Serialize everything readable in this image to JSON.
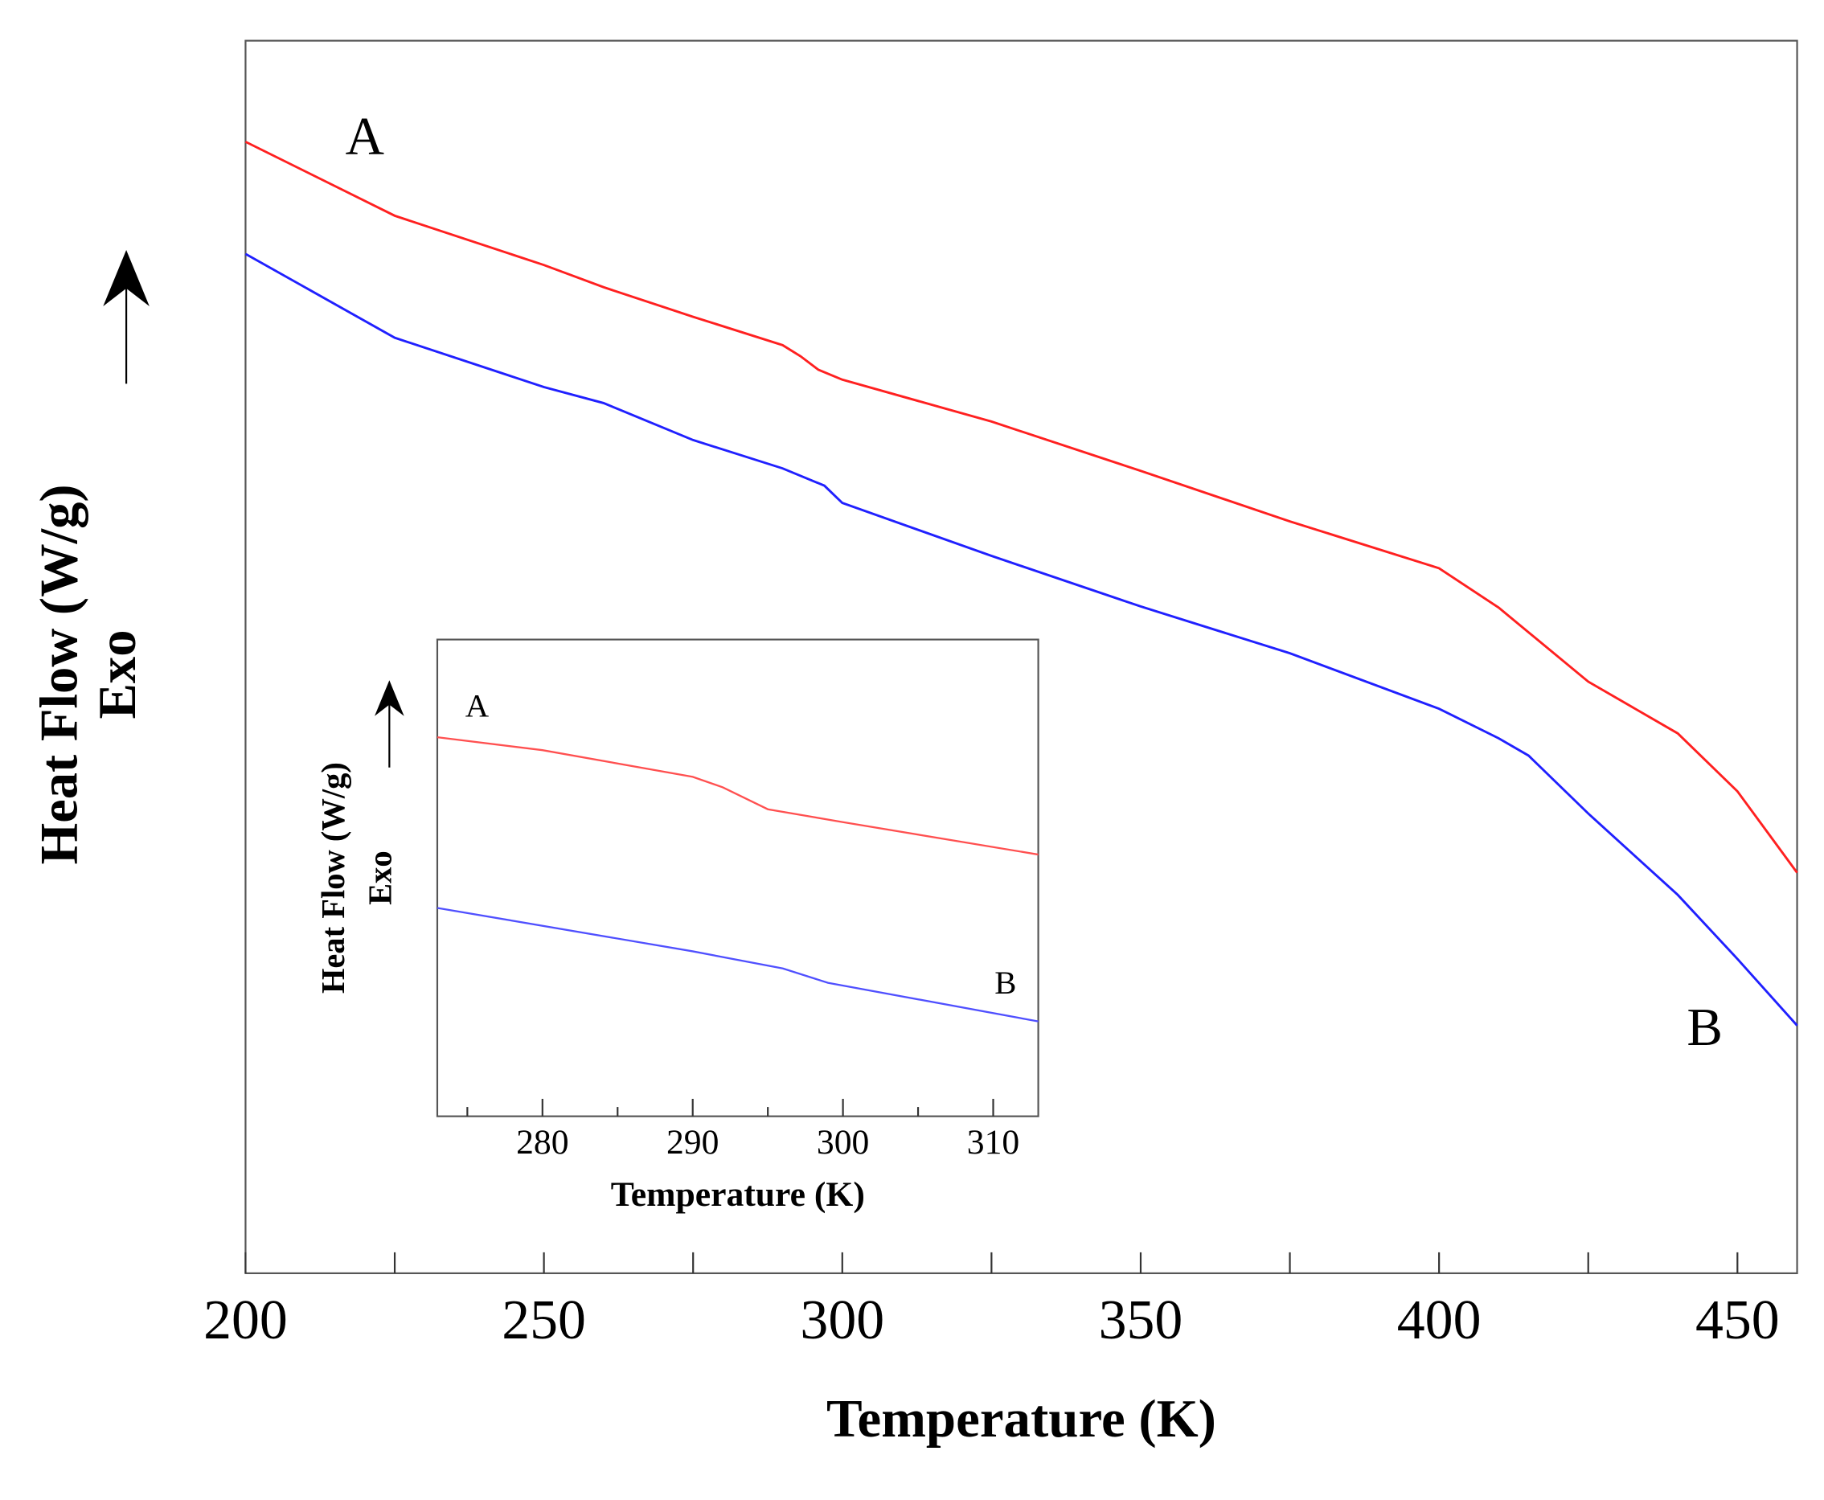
{
  "chart_data": [
    {
      "type": "line",
      "xlabel": "Temperature (K)",
      "ylabel": [
        "Heat Flow (W/g)",
        "Exo"
      ],
      "annotations": [
        "A",
        "B"
      ],
      "xlim": [
        200,
        460
      ],
      "xticks": [
        200,
        250,
        300,
        350,
        400,
        450
      ],
      "xticks_minor": [
        225,
        275,
        325,
        375,
        425
      ],
      "ylim": [
        0,
        100
      ],
      "series": [
        {
          "name": "A",
          "color": "#ff2020",
          "x": [
            200,
            225,
            250,
            260,
            275,
            290,
            293,
            296,
            300,
            325,
            350,
            375,
            400,
            410,
            425,
            440,
            450,
            455,
            460
          ],
          "values": [
            91.8,
            85.8,
            81.8,
            80.0,
            77.6,
            75.3,
            74.4,
            73.3,
            72.5,
            69.1,
            65.1,
            61.0,
            57.2,
            54.0,
            48.0,
            43.8,
            39.1,
            35.8,
            32.5
          ]
        },
        {
          "name": "B",
          "color": "#2020ff",
          "x": [
            200,
            225,
            250,
            260,
            275,
            290,
            297,
            300,
            325,
            350,
            375,
            400,
            410,
            415,
            425,
            440,
            450,
            460
          ],
          "values": [
            82.7,
            75.9,
            71.9,
            70.6,
            67.6,
            65.3,
            63.9,
            62.5,
            58.2,
            54.1,
            50.3,
            45.8,
            43.4,
            42.0,
            37.3,
            30.7,
            25.5,
            20.1
          ]
        }
      ]
    },
    {
      "type": "line",
      "xlabel": "Temperature (K)",
      "ylabel": [
        "Heat Flow (W/g)",
        "Exo"
      ],
      "annotations": [
        "A",
        "B"
      ],
      "xlim": [
        273,
        313
      ],
      "xticks": [
        280,
        290,
        300,
        310
      ],
      "xticks_minor": [
        275,
        285,
        295,
        305
      ],
      "ylim": [
        0,
        100
      ],
      "series": [
        {
          "name": "A",
          "color": "#ff5050",
          "x": [
            273,
            280,
            290,
            292,
            295,
            300,
            313
          ],
          "values": [
            79.5,
            76.8,
            71.2,
            69.0,
            64.4,
            61.7,
            54.9
          ]
        },
        {
          "name": "B",
          "color": "#5050ff",
          "x": [
            273,
            290,
            296,
            299,
            313
          ],
          "values": [
            43.7,
            34.6,
            31.0,
            28.0,
            19.9
          ]
        }
      ]
    }
  ]
}
